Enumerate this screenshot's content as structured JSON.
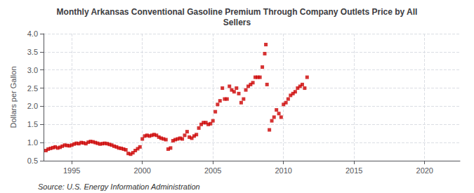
{
  "chart_data": {
    "type": "scatter",
    "title": "Monthly Arkansas Conventional Gasoline Premium Through Company Outlets Price by All\nSellers",
    "ylabel": "Dollars per Gallon",
    "annotations": [
      "Source: U.S. Energy Information Administration"
    ],
    "color": "#CC0000",
    "marker": "square",
    "grid": true,
    "xlim": [
      1993.0,
      2022.5
    ],
    "ylim": [
      0.5,
      4.0
    ],
    "xticks": [
      1995,
      2000,
      2005,
      2010,
      2015,
      2020
    ],
    "yticks": [
      0.5,
      {
        "value": 1.0,
        "label": "1.0"
      },
      1.5,
      {
        "value": 2.0,
        "label": "2.0"
      },
      2.5,
      {
        "value": 3.0,
        "label": "3.0"
      },
      3.5,
      {
        "value": 4.0,
        "label": "4.0"
      }
    ],
    "x": [
      1993.17,
      1993.33,
      1993.5,
      1993.67,
      1993.83,
      1994.0,
      1994.17,
      1994.33,
      1994.5,
      1994.67,
      1994.83,
      1995.0,
      1995.17,
      1995.33,
      1995.5,
      1995.67,
      1995.83,
      1996.0,
      1996.17,
      1996.33,
      1996.5,
      1996.67,
      1996.83,
      1997.0,
      1997.17,
      1997.33,
      1997.5,
      1997.67,
      1997.83,
      1998.0,
      1998.17,
      1998.33,
      1998.5,
      1998.67,
      1998.83,
      1999.0,
      1999.17,
      1999.33,
      1999.5,
      1999.67,
      1999.83,
      2000.0,
      2000.17,
      2000.33,
      2000.5,
      2000.67,
      2000.83,
      2001.0,
      2001.17,
      2001.33,
      2001.5,
      2001.67,
      2001.83,
      2002.0,
      2002.17,
      2002.33,
      2002.5,
      2002.67,
      2002.83,
      2003.0,
      2003.17,
      2003.33,
      2003.5,
      2003.67,
      2003.83,
      2004.0,
      2004.17,
      2004.33,
      2004.5,
      2004.67,
      2004.83,
      2005.0,
      2005.17,
      2005.33,
      2005.5,
      2005.67,
      2005.83,
      2006.0,
      2006.17,
      2006.33,
      2006.5,
      2006.67,
      2006.83,
      2007.0,
      2007.17,
      2007.33,
      2007.5,
      2007.67,
      2007.83,
      2008.0,
      2008.17,
      2008.33,
      2008.5,
      2008.67,
      2008.75,
      2008.83,
      2009.0,
      2009.17,
      2009.33,
      2009.5,
      2009.67,
      2009.83,
      2010.0,
      2010.17,
      2010.33,
      2010.5,
      2010.67,
      2010.83,
      2011.0,
      2011.17,
      2011.33,
      2011.5,
      2011.67
    ],
    "values": [
      0.78,
      0.82,
      0.84,
      0.86,
      0.88,
      0.85,
      0.87,
      0.9,
      0.93,
      0.92,
      0.91,
      0.93,
      0.96,
      0.98,
      0.97,
      1.0,
      0.99,
      0.97,
      1.01,
      1.03,
      1.02,
      1.0,
      0.98,
      0.96,
      0.97,
      0.98,
      0.97,
      0.95,
      0.93,
      0.9,
      0.88,
      0.85,
      0.84,
      0.82,
      0.8,
      0.7,
      0.68,
      0.72,
      0.78,
      0.83,
      0.88,
      1.1,
      1.18,
      1.2,
      1.18,
      1.2,
      1.22,
      1.2,
      1.15,
      1.12,
      1.1,
      1.08,
      0.82,
      0.85,
      1.05,
      1.08,
      1.1,
      1.12,
      1.1,
      1.2,
      1.3,
      1.15,
      1.12,
      1.18,
      1.22,
      1.4,
      1.5,
      1.55,
      1.55,
      1.5,
      1.52,
      1.6,
      1.85,
      2.05,
      2.15,
      2.5,
      2.2,
      2.2,
      2.55,
      2.45,
      2.4,
      2.5,
      2.35,
      2.1,
      2.2,
      2.45,
      2.55,
      2.6,
      2.65,
      2.8,
      2.8,
      2.8,
      3.08,
      3.45,
      3.7,
      2.6,
      1.35,
      1.6,
      1.7,
      1.9,
      1.8,
      1.7,
      2.05,
      2.1,
      2.2,
      2.3,
      2.35,
      2.4,
      2.5,
      2.55,
      2.6,
      2.5,
      2.8
    ]
  }
}
